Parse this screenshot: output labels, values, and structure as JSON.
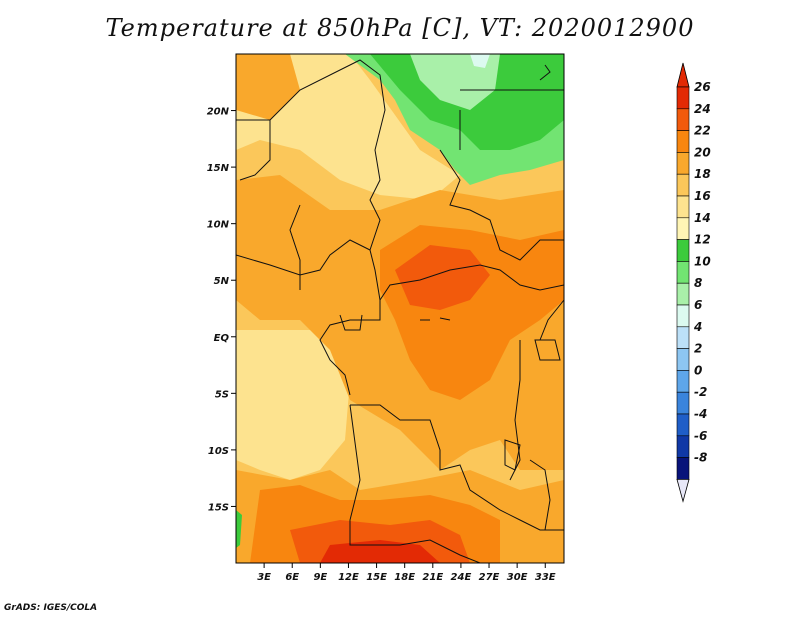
{
  "title": "Temperature at 850hPa [C], VT: 2020012900",
  "credit": "GrADS: IGES/COLA",
  "map": {
    "lon_range": [
      0,
      35
    ],
    "lat_range": [
      -20,
      25
    ],
    "x_ticks": [
      {
        "lon": 3,
        "label": "3E"
      },
      {
        "lon": 6,
        "label": "6E"
      },
      {
        "lon": 9,
        "label": "9E"
      },
      {
        "lon": 12,
        "label": "12E"
      },
      {
        "lon": 15,
        "label": "15E"
      },
      {
        "lon": 18,
        "label": "18E"
      },
      {
        "lon": 21,
        "label": "21E"
      },
      {
        "lon": 24,
        "label": "24E"
      },
      {
        "lon": 27,
        "label": "27E"
      },
      {
        "lon": 30,
        "label": "30E"
      },
      {
        "lon": 33,
        "label": "33E"
      }
    ],
    "y_ticks": [
      {
        "lat": 20,
        "label": "20N"
      },
      {
        "lat": 15,
        "label": "15N"
      },
      {
        "lat": 10,
        "label": "10N"
      },
      {
        "lat": 5,
        "label": "5N"
      },
      {
        "lat": 0,
        "label": "EQ"
      },
      {
        "lat": -5,
        "label": "5S"
      },
      {
        "lat": -10,
        "label": "10S"
      },
      {
        "lat": -15,
        "label": "15S"
      }
    ]
  },
  "colorbar": {
    "labels": [
      "26",
      "24",
      "22",
      "20",
      "18",
      "16",
      "14",
      "12",
      "10",
      "8",
      "6",
      "4",
      "2",
      "0",
      "-2",
      "-4",
      "-6",
      "-8"
    ],
    "colors": [
      "#e32a05",
      "#f25a0c",
      "#f8860f",
      "#f9a82c",
      "#fbc75a",
      "#fde38f",
      "#fff5b5",
      "#3ccb3c",
      "#72e472",
      "#a9f0a9",
      "#dcfaf0",
      "#bce0f8",
      "#8dc6f2",
      "#5ea6ea",
      "#3a84dc",
      "#1f5ec8",
      "#1038a6",
      "#08137a"
    ]
  }
}
